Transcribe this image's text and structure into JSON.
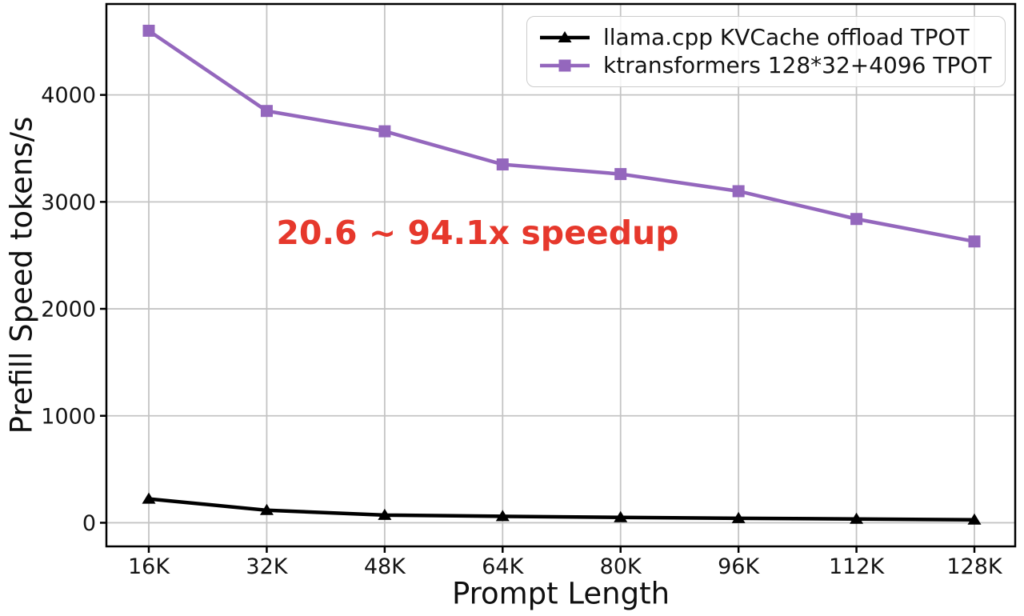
{
  "chart_data": {
    "type": "line",
    "title": "",
    "xlabel": "Prompt Length",
    "ylabel": "Prefill Speed tokens/s",
    "categories": [
      "16K",
      "32K",
      "48K",
      "64K",
      "80K",
      "96K",
      "112K",
      "128K"
    ],
    "yticks": [
      0,
      1000,
      2000,
      3000,
      4000
    ],
    "ylim": [
      -221,
      4850
    ],
    "grid": true,
    "legend_position": "upper right",
    "series": [
      {
        "name": "llama.cpp KVCache offload TPOT",
        "color": "#000000",
        "marker": "triangle",
        "values": [
          223,
          117,
          72,
          60,
          50,
          42,
          35,
          28
        ]
      },
      {
        "name": "ktransformers 128*32+4096 TPOT",
        "color": "#9467bd",
        "marker": "square",
        "values": [
          4600,
          3850,
          3660,
          3350,
          3260,
          3100,
          2840,
          2630
        ]
      }
    ],
    "annotation": {
      "text": "20.6 ~ 94.1x speedup",
      "color": "#e6382c"
    }
  },
  "style_colors": {
    "grid": "#c4c4c4",
    "spine": "#000000",
    "tick_label": "#141414"
  }
}
